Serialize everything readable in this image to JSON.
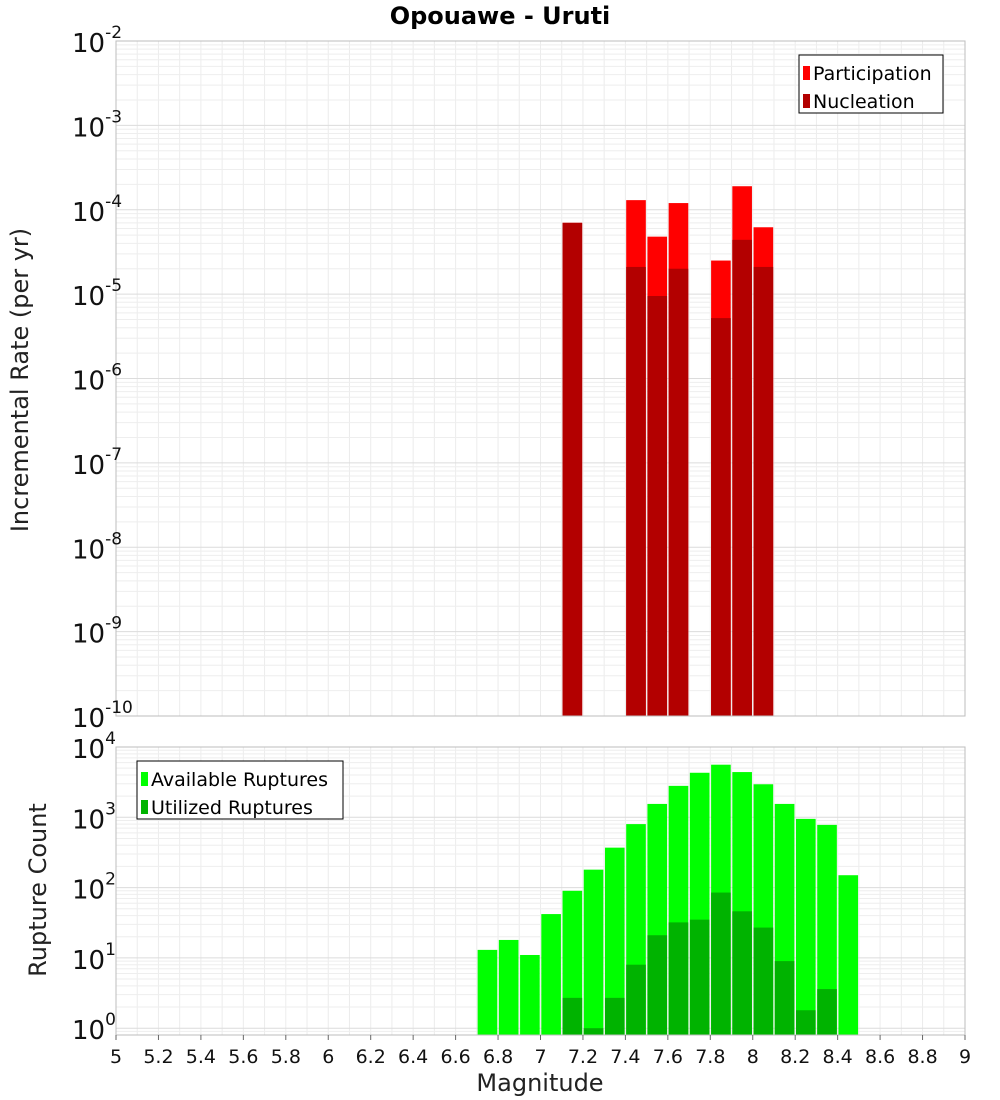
{
  "chart_data": [
    {
      "type": "bar",
      "title": "Opouawe - Uruti",
      "ylabel": "Incremental Rate (per yr)",
      "xlabel": "",
      "yscale": "log",
      "xlim": [
        5,
        9
      ],
      "ylim": [
        1e-10,
        0.01
      ],
      "yticks": [
        {
          "base": "10",
          "exp": "-2"
        },
        {
          "base": "10",
          "exp": "-3"
        },
        {
          "base": "10",
          "exp": "-4"
        },
        {
          "base": "10",
          "exp": "-5"
        },
        {
          "base": "10",
          "exp": "-6"
        },
        {
          "base": "10",
          "exp": "-7"
        },
        {
          "base": "10",
          "exp": "-8"
        },
        {
          "base": "10",
          "exp": "-9"
        },
        {
          "base": "10",
          "exp": "-10"
        }
      ],
      "grid": true,
      "legend_position": "top-right",
      "legend": [
        "Participation",
        "Nucleation"
      ],
      "series": [
        {
          "name": "Participation",
          "color": "#ff0000",
          "x": [
            7.15,
            7.45,
            7.55,
            7.65,
            7.85,
            7.95,
            8.05
          ],
          "values": [
            7e-05,
            0.00013,
            4.8e-05,
            0.00012,
            2.5e-05,
            0.00019,
            6.2e-05
          ]
        },
        {
          "name": "Nucleation",
          "color": "#b30000",
          "x": [
            7.15,
            7.45,
            7.55,
            7.65,
            7.85,
            7.95,
            8.05
          ],
          "values": [
            7e-05,
            2.1e-05,
            9.5e-06,
            2e-05,
            5.2e-06,
            4.4e-05,
            2.1e-05
          ]
        }
      ]
    },
    {
      "type": "bar",
      "title": "",
      "ylabel": "Rupture Count",
      "xlabel": "Magnitude",
      "yscale": "log",
      "xlim": [
        5,
        9
      ],
      "ylim": [
        0.8,
        10000.0
      ],
      "xticks": [
        "5",
        "5.2",
        "5.4",
        "5.6",
        "5.8",
        "6",
        "6.2",
        "6.4",
        "6.6",
        "6.8",
        "7",
        "7.2",
        "7.4",
        "7.6",
        "7.8",
        "8",
        "8.2",
        "8.4",
        "8.6",
        "8.8",
        "9"
      ],
      "yticks": [
        {
          "base": "10",
          "exp": "4"
        },
        {
          "base": "10",
          "exp": "3"
        },
        {
          "base": "10",
          "exp": "2"
        },
        {
          "base": "10",
          "exp": "1"
        },
        {
          "base": "10",
          "exp": "0"
        }
      ],
      "grid": true,
      "legend_position": "top-left",
      "legend": [
        "Available Ruptures",
        "Utilized Ruptures"
      ],
      "series": [
        {
          "name": "Available Ruptures",
          "color": "#00ff00",
          "x": [
            6.75,
            6.85,
            6.95,
            7.05,
            7.15,
            7.25,
            7.35,
            7.45,
            7.55,
            7.65,
            7.75,
            7.85,
            7.95,
            8.05,
            8.15,
            8.25,
            8.35,
            8.45
          ],
          "values": [
            13,
            18,
            11,
            42,
            90,
            180,
            370,
            800,
            1550,
            2800,
            4300,
            5600,
            4400,
            2950,
            1550,
            950,
            780,
            150
          ]
        },
        {
          "name": "Utilized Ruptures",
          "color": "#00b300",
          "x": [
            7.15,
            7.25,
            7.35,
            7.45,
            7.55,
            7.65,
            7.75,
            7.85,
            7.95,
            8.05,
            8.15,
            8.25,
            8.35
          ],
          "values": [
            2.7,
            1,
            2.7,
            8,
            21,
            32,
            35,
            85,
            46,
            27,
            9,
            1.8,
            3.6
          ]
        }
      ]
    }
  ]
}
